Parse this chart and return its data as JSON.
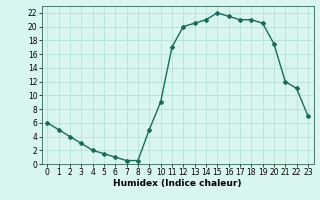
{
  "x": [
    0,
    1,
    2,
    3,
    4,
    5,
    6,
    7,
    8,
    9,
    10,
    11,
    12,
    13,
    14,
    15,
    16,
    17,
    18,
    19,
    20,
    21,
    22,
    23
  ],
  "y": [
    6,
    5,
    4,
    3,
    2,
    1.5,
    1,
    0.5,
    0.5,
    5,
    9,
    17,
    20,
    20.5,
    21,
    22,
    21.5,
    21,
    21,
    20.5,
    17.5,
    12,
    11,
    7
  ],
  "line_color": "#1a6b5a",
  "marker": "D",
  "marker_size": 2,
  "bg_color": "#d9f5f0",
  "grid_color": "#b0ddd6",
  "xlabel": "Humidex (Indice chaleur)",
  "xlim": [
    -0.5,
    23.5
  ],
  "ylim": [
    0,
    23
  ],
  "yticks": [
    0,
    2,
    4,
    6,
    8,
    10,
    12,
    14,
    16,
    18,
    20,
    22
  ],
  "xticks": [
    0,
    1,
    2,
    3,
    4,
    5,
    6,
    7,
    8,
    9,
    10,
    11,
    12,
    13,
    14,
    15,
    16,
    17,
    18,
    19,
    20,
    21,
    22,
    23
  ],
  "tick_fontsize": 5.5,
  "xlabel_fontsize": 6.5,
  "line_width": 1.0
}
